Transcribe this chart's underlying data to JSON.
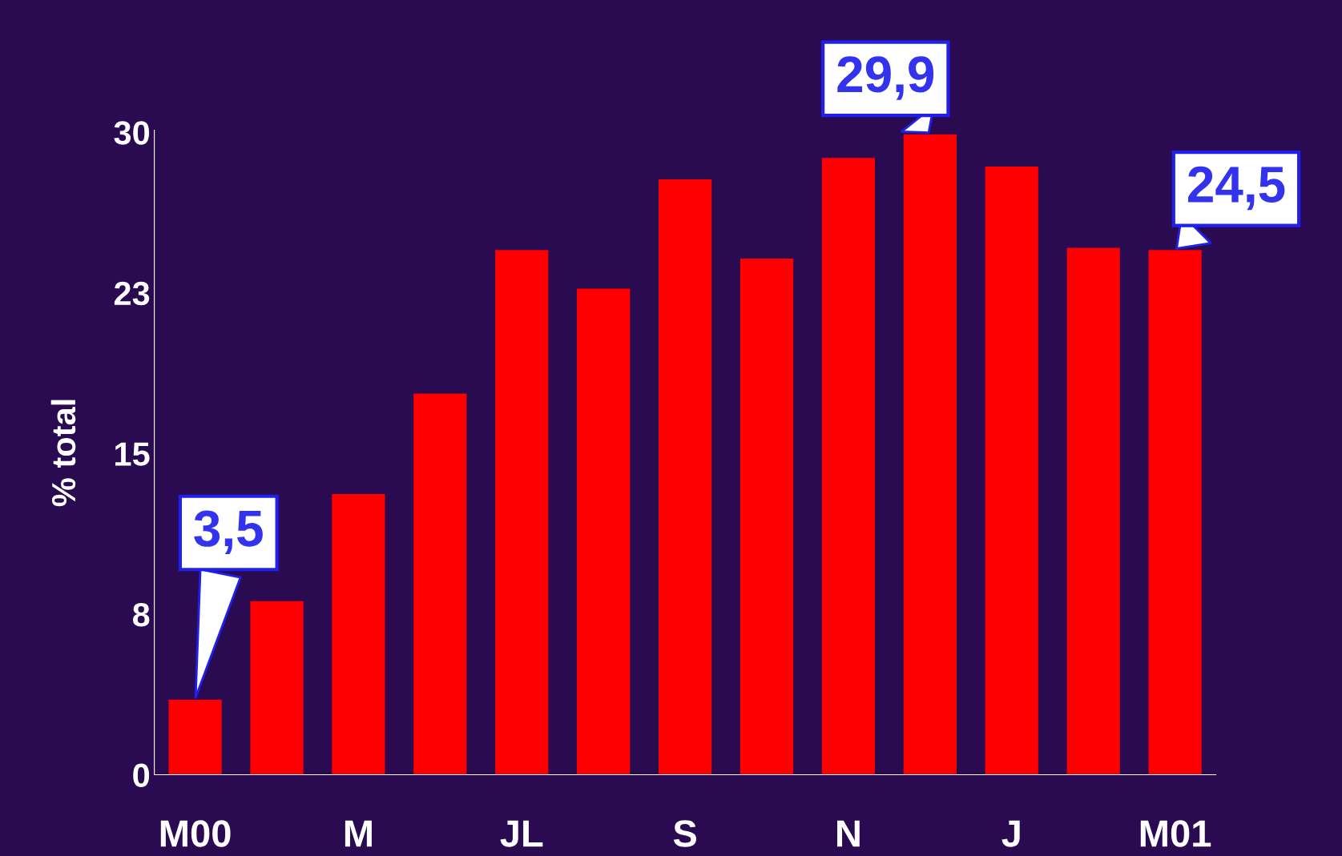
{
  "chart_data": {
    "type": "bar",
    "ylabel": "% total",
    "categories": [
      "M00",
      null,
      "M",
      null,
      "JL",
      null,
      "S",
      null,
      "N",
      null,
      "J",
      null,
      "M01"
    ],
    "values": [
      3.5,
      8.1,
      13.1,
      17.8,
      24.5,
      22.7,
      27.8,
      24.1,
      28.8,
      29.9,
      28.4,
      24.6,
      24.5
    ],
    "value_labels": [
      "3,5",
      null,
      null,
      null,
      null,
      null,
      null,
      null,
      null,
      "29,9",
      null,
      null,
      "24,5"
    ],
    "color": "#ff0000",
    "ylim": [
      0,
      30.1
    ],
    "yticks": [
      0,
      {
        "value": 7.5,
        "label": "8"
      },
      15,
      {
        "value": 22.5,
        "label": "23"
      },
      30
    ],
    "grid": false,
    "legend": false
  }
}
